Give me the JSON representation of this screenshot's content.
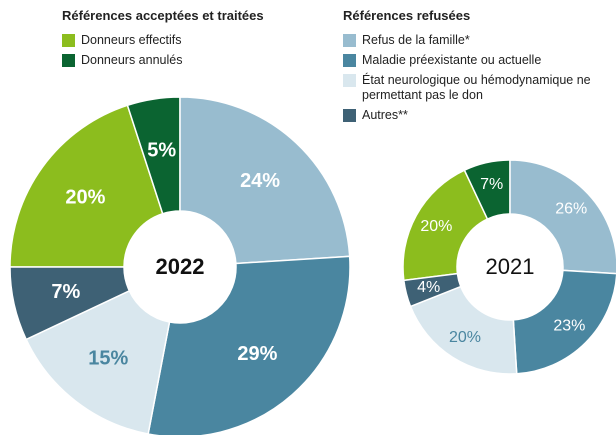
{
  "legend": {
    "groups": [
      {
        "title": "Références acceptées et traitées",
        "items": [
          {
            "name": "Donneurs effectifs",
            "color": "#8cbd1e"
          },
          {
            "name": "Donneurs annulés",
            "color": "#0b6431"
          }
        ]
      },
      {
        "title": "Références refusées",
        "items": [
          {
            "name": "Refus de la famille*",
            "color": "#98bccf"
          },
          {
            "name": "Maladie préexistante ou actuelle",
            "color": "#4a86a0"
          },
          {
            "name": "État neurologique ou hémodynamique ne permettant pas le don",
            "color": "#d9e7ee"
          },
          {
            "name": "Autres**",
            "color": "#3e6175"
          }
        ]
      }
    ]
  },
  "chart_data": [
    {
      "type": "donut",
      "title": "2022",
      "values": [
        20,
        5,
        24,
        29,
        15,
        7
      ],
      "value_labels": [
        "20%",
        "5%",
        "24%",
        "29%",
        "15%",
        "7%"
      ]
    },
    {
      "type": "donut",
      "title": "2021",
      "values": [
        20,
        7,
        26,
        23,
        20,
        4
      ],
      "value_labels": [
        "20%",
        "7%",
        "26%",
        "23%",
        "20%",
        "4%"
      ]
    }
  ]
}
